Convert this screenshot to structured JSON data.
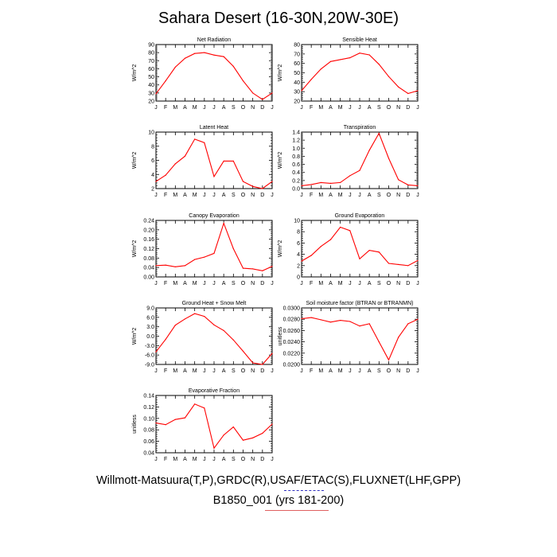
{
  "title": "Sahara Desert (16-30N,20W-30E)",
  "footer": {
    "obs_line": "Willmott-Matsuura(T,P),GRDC(R),USAF/ETAC(S),FLUXNET(LHF,GPP)",
    "model_line": "B1850_001 (yrs 181-200)"
  },
  "colors": {
    "series": "#ff0000",
    "axis": "#000000",
    "obs_legend": "#3030c0",
    "model_legend": "#e06060"
  },
  "chart_data": [
    {
      "type": "line",
      "title": "Net Radiation",
      "ylabel": "W/m^2",
      "categories": [
        "J",
        "F",
        "M",
        "A",
        "M",
        "J",
        "J",
        "A",
        "S",
        "O",
        "N",
        "D",
        "J"
      ],
      "values": [
        29,
        45,
        62,
        73,
        79,
        80,
        77,
        75,
        63,
        45,
        30,
        22,
        30
      ],
      "ylim": [
        20,
        90
      ],
      "yticks": [
        "20",
        "30",
        "40",
        "50",
        "60",
        "70",
        "80",
        "90"
      ]
    },
    {
      "type": "line",
      "title": "Sensible Heat",
      "ylabel": "W/m^2",
      "categories": [
        "J",
        "F",
        "M",
        "A",
        "M",
        "J",
        "J",
        "A",
        "S",
        "O",
        "N",
        "D",
        "J"
      ],
      "values": [
        31,
        43,
        54,
        62,
        64,
        66,
        71,
        69,
        59,
        46,
        35,
        28,
        31
      ],
      "ylim": [
        20,
        80
      ],
      "yticks": [
        "20",
        "30",
        "40",
        "50",
        "60",
        "70",
        "80"
      ]
    },
    {
      "type": "line",
      "title": "Latent Heat",
      "ylabel": "W/m^2",
      "categories": [
        "J",
        "F",
        "M",
        "A",
        "M",
        "J",
        "J",
        "A",
        "S",
        "O",
        "N",
        "D",
        "J"
      ],
      "values": [
        3.0,
        3.9,
        5.5,
        6.6,
        9.0,
        8.5,
        3.7,
        5.9,
        5.9,
        3.0,
        2.3,
        2.0,
        3.0
      ],
      "ylim": [
        2,
        10
      ],
      "yticks": [
        "2",
        "4",
        "6",
        "8",
        "10"
      ]
    },
    {
      "type": "line",
      "title": "Transpiration",
      "ylabel": "W/m^2",
      "categories": [
        "J",
        "F",
        "M",
        "A",
        "M",
        "J",
        "J",
        "A",
        "S",
        "O",
        "N",
        "D",
        "J"
      ],
      "values": [
        0.07,
        0.1,
        0.15,
        0.13,
        0.15,
        0.32,
        0.45,
        0.95,
        1.37,
        0.75,
        0.22,
        0.09,
        0.07
      ],
      "ylim": [
        0,
        1.4
      ],
      "yticks": [
        "0.0",
        "0.2",
        "0.4",
        "0.6",
        "0.8",
        "1.0",
        "1.2",
        "1.4"
      ]
    },
    {
      "type": "line",
      "title": "Canopy Evaporation",
      "ylabel": "W/m^2",
      "categories": [
        "J",
        "F",
        "M",
        "A",
        "M",
        "J",
        "J",
        "A",
        "S",
        "O",
        "N",
        "D",
        "J"
      ],
      "values": [
        0.048,
        0.05,
        0.043,
        0.048,
        0.074,
        0.084,
        0.1,
        0.228,
        0.12,
        0.037,
        0.034,
        0.026,
        0.045
      ],
      "ylim": [
        0,
        0.24
      ],
      "yticks": [
        "0.00",
        "0.04",
        "0.08",
        "0.12",
        "0.16",
        "0.20",
        "0.24"
      ]
    },
    {
      "type": "line",
      "title": "Ground Evaporation",
      "ylabel": "W/m^2",
      "categories": [
        "J",
        "F",
        "M",
        "A",
        "M",
        "J",
        "J",
        "A",
        "S",
        "O",
        "N",
        "D",
        "J"
      ],
      "values": [
        2.8,
        3.8,
        5.4,
        6.6,
        8.8,
        8.2,
        3.2,
        4.7,
        4.4,
        2.4,
        2.2,
        2.0,
        2.9
      ],
      "ylim": [
        0,
        10
      ],
      "yticks": [
        "0",
        "2",
        "4",
        "6",
        "8",
        "10"
      ]
    },
    {
      "type": "line",
      "title": "Ground Heat + Snow Melt",
      "ylabel": "W/m^2",
      "categories": [
        "J",
        "F",
        "M",
        "A",
        "M",
        "J",
        "J",
        "A",
        "S",
        "O",
        "N",
        "D",
        "J"
      ],
      "values": [
        -5.0,
        -1.0,
        3.5,
        5.5,
        7.2,
        6.3,
        3.6,
        1.8,
        -1.2,
        -4.8,
        -8.5,
        -9.0,
        -5.5
      ],
      "ylim": [
        -9,
        9
      ],
      "yticks": [
        "-9.0",
        "-6.0",
        "-3.0",
        "0.0",
        "3.0",
        "6.0",
        "9.0"
      ]
    },
    {
      "type": "line",
      "title": "Soil moisture factor (BTRAN or BTRANMN)",
      "ylabel": "unitless",
      "categories": [
        "J",
        "F",
        "M",
        "A",
        "M",
        "J",
        "J",
        "A",
        "S",
        "O",
        "N",
        "D",
        "J"
      ],
      "values": [
        0.0281,
        0.0283,
        0.0279,
        0.0275,
        0.0278,
        0.0276,
        0.0268,
        0.0272,
        0.024,
        0.0208,
        0.0248,
        0.0272,
        0.028
      ],
      "ylim": [
        0.02,
        0.03
      ],
      "yticks": [
        "0.0200",
        "0.0220",
        "0.0240",
        "0.0260",
        "0.0280",
        "0.0300"
      ]
    },
    {
      "type": "line",
      "title": "Evaporative Fraction",
      "ylabel": "unitless",
      "categories": [
        "J",
        "F",
        "M",
        "A",
        "M",
        "J",
        "J",
        "A",
        "S",
        "O",
        "N",
        "D",
        "J"
      ],
      "values": [
        0.092,
        0.089,
        0.098,
        0.101,
        0.125,
        0.118,
        0.048,
        0.071,
        0.085,
        0.062,
        0.066,
        0.074,
        0.09
      ],
      "ylim": [
        0.04,
        0.14
      ],
      "yticks": [
        "0.04",
        "0.06",
        "0.08",
        "0.10",
        "0.12",
        "0.14"
      ]
    }
  ]
}
